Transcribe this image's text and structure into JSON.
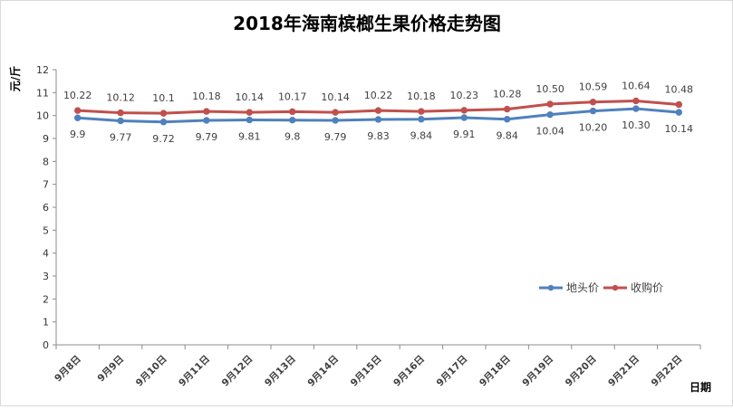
{
  "chart_data": {
    "type": "line",
    "title": "2018年海南槟榔生果价格走势图",
    "xlabel": "日期",
    "ylabel": "元/斤",
    "ylim": [
      0,
      12
    ],
    "yticks": [
      0,
      1,
      2,
      3,
      4,
      5,
      6,
      7,
      8,
      9,
      10,
      11,
      12
    ],
    "grid": false,
    "legend_position": "right",
    "categories": [
      "9月8日",
      "9月9日",
      "9月10日",
      "9月11日",
      "9月12日",
      "9月13日",
      "9月14日",
      "9月15日",
      "9月16日",
      "9月17日",
      "9月18日",
      "9月19日",
      "9月20日",
      "9月21日",
      "9月22日"
    ],
    "series": [
      {
        "name": "地头价",
        "color": "#4f81bd",
        "values": [
          9.9,
          9.77,
          9.72,
          9.79,
          9.81,
          9.8,
          9.79,
          9.83,
          9.84,
          9.91,
          9.84,
          10.04,
          10.2,
          10.3,
          10.14
        ],
        "labels": [
          "9.9",
          "9.77",
          "9.72",
          "9.79",
          "9.81",
          "9.8",
          "9.79",
          "9.83",
          "9.84",
          "9.91",
          "9.84",
          "10.04",
          "10.20",
          "10.30",
          "10.14"
        ]
      },
      {
        "name": "收购价",
        "color": "#c0504d",
        "values": [
          10.22,
          10.12,
          10.1,
          10.18,
          10.14,
          10.17,
          10.14,
          10.22,
          10.18,
          10.23,
          10.28,
          10.5,
          10.59,
          10.64,
          10.48
        ],
        "labels": [
          "10.22",
          "10.12",
          "10.1",
          "10.18",
          "10.14",
          "10.17",
          "10.14",
          "10.22",
          "10.18",
          "10.23",
          "10.28",
          "10.50",
          "10.59",
          "10.64",
          "10.48"
        ]
      }
    ]
  }
}
